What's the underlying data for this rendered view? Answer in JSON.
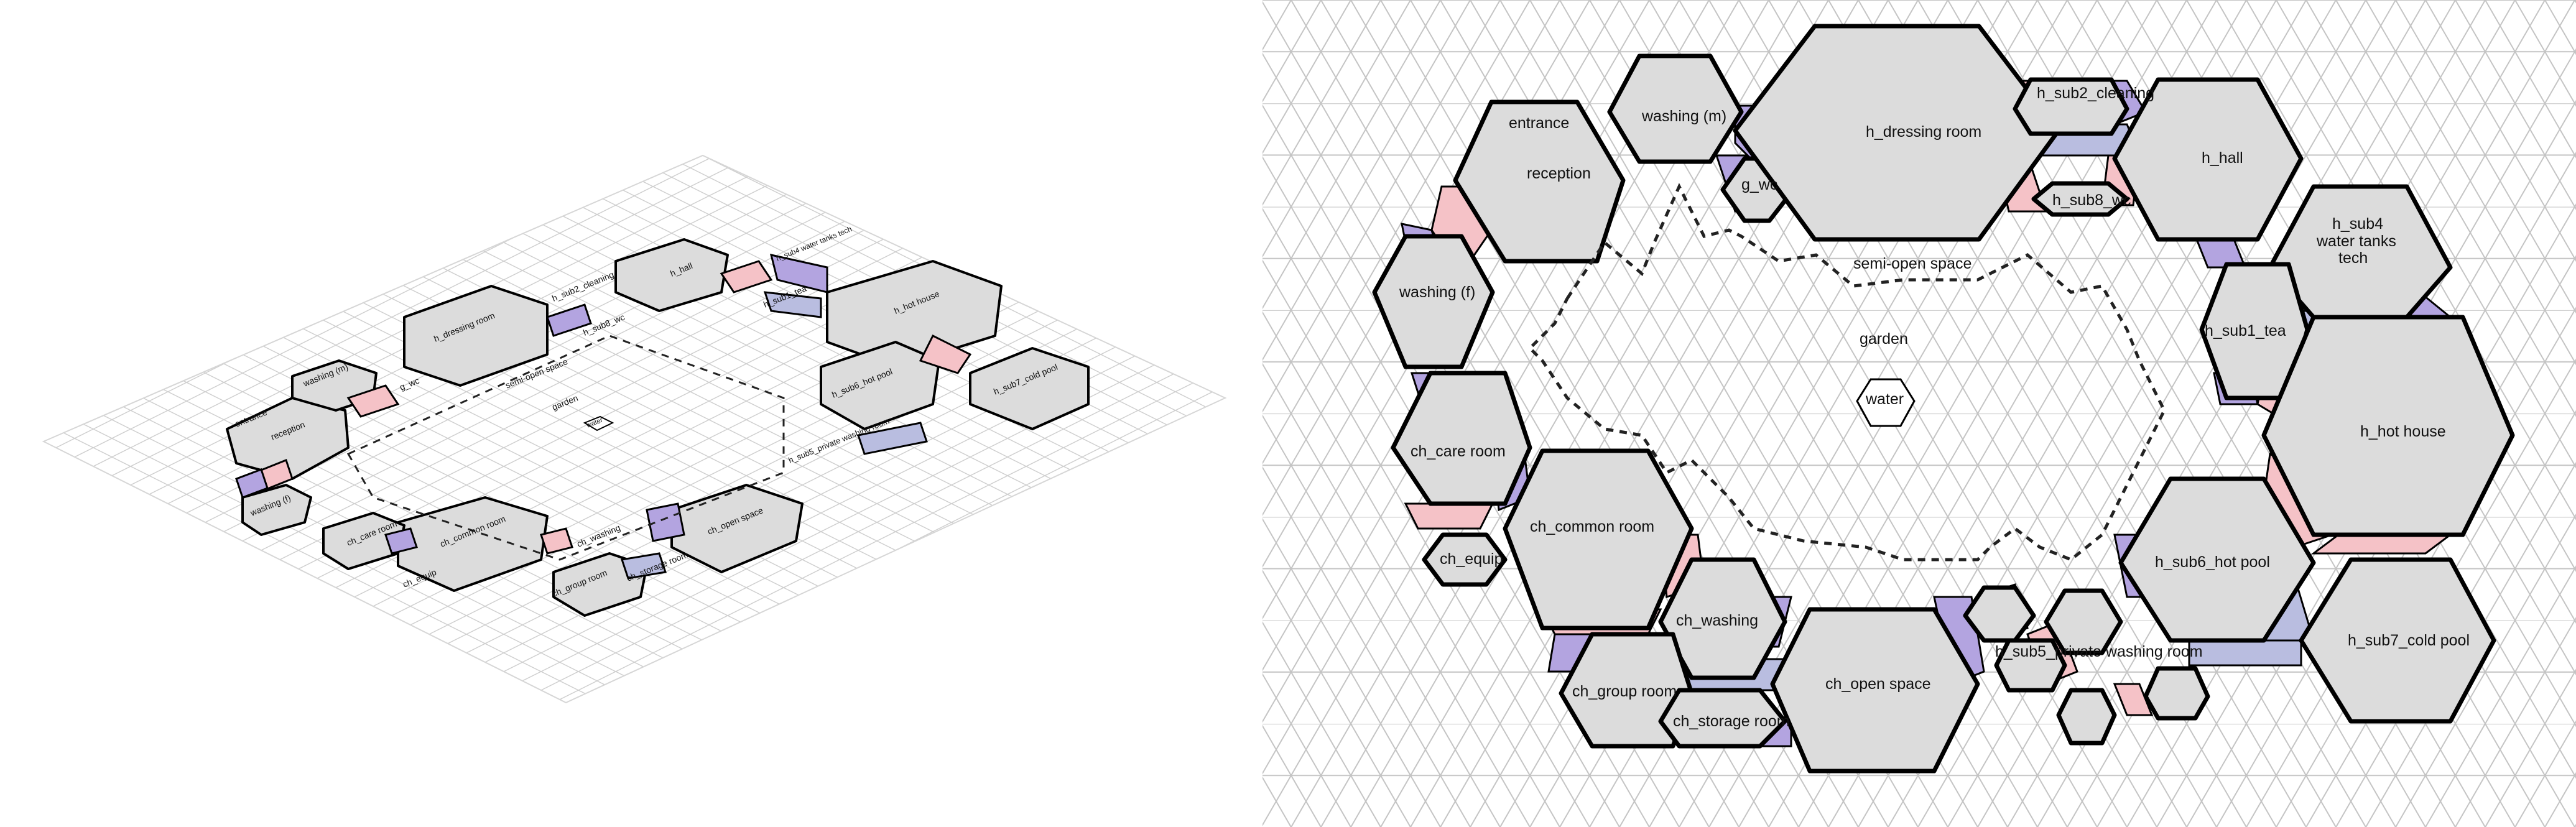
{
  "rooms": {
    "entrance": "entrance",
    "reception": "reception",
    "washing_m": "washing (m)",
    "g_wc": "g_wc",
    "h_dressing_room": "h_dressing room",
    "h_sub2_cleaning": "h_sub2_cleaning",
    "h_sub8_wc": "h_sub8_wc",
    "h_hall": "h_hall",
    "h_sub4_line1": "h_sub4",
    "h_sub4_line2": "water tanks",
    "h_sub4_line3": "tech",
    "washing_f": "washing (f)",
    "semi_open_space": "semi-open space",
    "garden": "garden",
    "water": "water",
    "h_sub1_tea": "h_sub1_tea",
    "h_hot_house": "h_hot house",
    "ch_care_room": "ch_care room",
    "ch_common_room": "ch_common room",
    "ch_equip": "ch_equip",
    "h_sub6_hot_pool": "h_sub6_hot pool",
    "ch_washing": "ch_washing",
    "h_sub5_private_washing_room": "h_sub5_private washing room",
    "h_sub7_cold_pool": "h_sub7_cold pool",
    "ch_group_room": "ch_group room",
    "ch_open_space": "ch_open space",
    "ch_storage_room": "ch_storage room"
  },
  "iso_view": {
    "entrance": "entrance",
    "reception": "reception",
    "washing_m": "washing (m)",
    "g_wc": "g_wc",
    "h_dressing_room": "h_dressing room",
    "h_sub2_cleaning": "h_sub2_cleaning",
    "h_hall": "h_hall",
    "h_sub4": "h_sub4 water tanks tech",
    "h_sub8_wc": "h_sub8_wc",
    "semi_open_space": "semi-open space",
    "h_sub1_tea": "h_sub1_tea",
    "h_hot_house": "h_hot house",
    "garden": "garden",
    "water": "water",
    "h_sub6_hot_pool": "h_sub6_hot pool",
    "h_sub7_cold_pool": "h_sub7_cold pool",
    "washing_f": "washing (f)",
    "ch_care_room": "ch_care room",
    "ch_equip": "ch_equip",
    "ch_common_room": "ch_common room",
    "ch_washing": "ch_washing",
    "ch_open_space": "ch_open space",
    "ch_group_room": "ch_group room",
    "ch_storage_room": "ch_storage room",
    "h_sub5_private_washing_room": "h_sub5_private washing room"
  },
  "colors": {
    "room_fill": "#dcdcdc",
    "link_pink": "#f5c2c7",
    "link_purple": "#b3a4e0",
    "link_blue": "#b9bde0",
    "grid": "#bdbdbd"
  }
}
